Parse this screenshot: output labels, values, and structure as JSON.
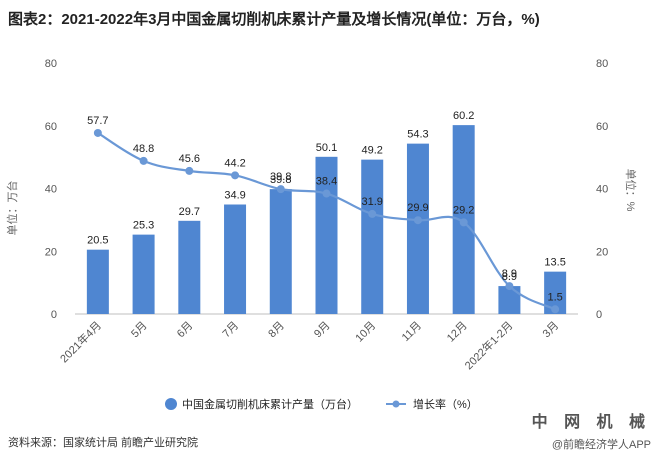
{
  "title": "图表2：2021-2022年3月中国金属切削机床累计产量及增长情况(单位：万台，%)",
  "source": "资料来源：国家统计局 前瞻产业研究院",
  "brand": {
    "name": "中 网 机 械",
    "sub": "@前瞻经济学人APP"
  },
  "chart_data": {
    "type": "bar",
    "title": "图表2：2021-2022年3月中国金属切削机床累计产量及增长情况(单位：万台，%)",
    "categories": [
      "2021年4月",
      "5月",
      "6月",
      "7月",
      "8月",
      "9月",
      "10月",
      "11月",
      "12月",
      "2022年1-2月",
      "3月"
    ],
    "series": [
      {
        "name": "中国金属切削机床累计产量（万台）",
        "type": "bar",
        "axis": "left",
        "color": "#4f86d1",
        "values": [
          20.5,
          25.3,
          29.7,
          34.9,
          39.8,
          50.1,
          49.2,
          54.3,
          60.2,
          8.9,
          13.5
        ]
      },
      {
        "name": "增长率（%）",
        "type": "line",
        "axis": "right",
        "color": "#6a98d6",
        "values": [
          57.7,
          48.8,
          45.6,
          44.2,
          39.8,
          38.4,
          31.9,
          29.9,
          29.2,
          8.9,
          1.5
        ]
      }
    ],
    "ylabel": "单位：万台",
    "y2label": "单位：%",
    "ylim": [
      0,
      80
    ],
    "y2lim": [
      0,
      80
    ],
    "yticks": [
      0,
      20,
      40,
      60,
      80
    ],
    "grid": false,
    "legend": "bottom"
  }
}
